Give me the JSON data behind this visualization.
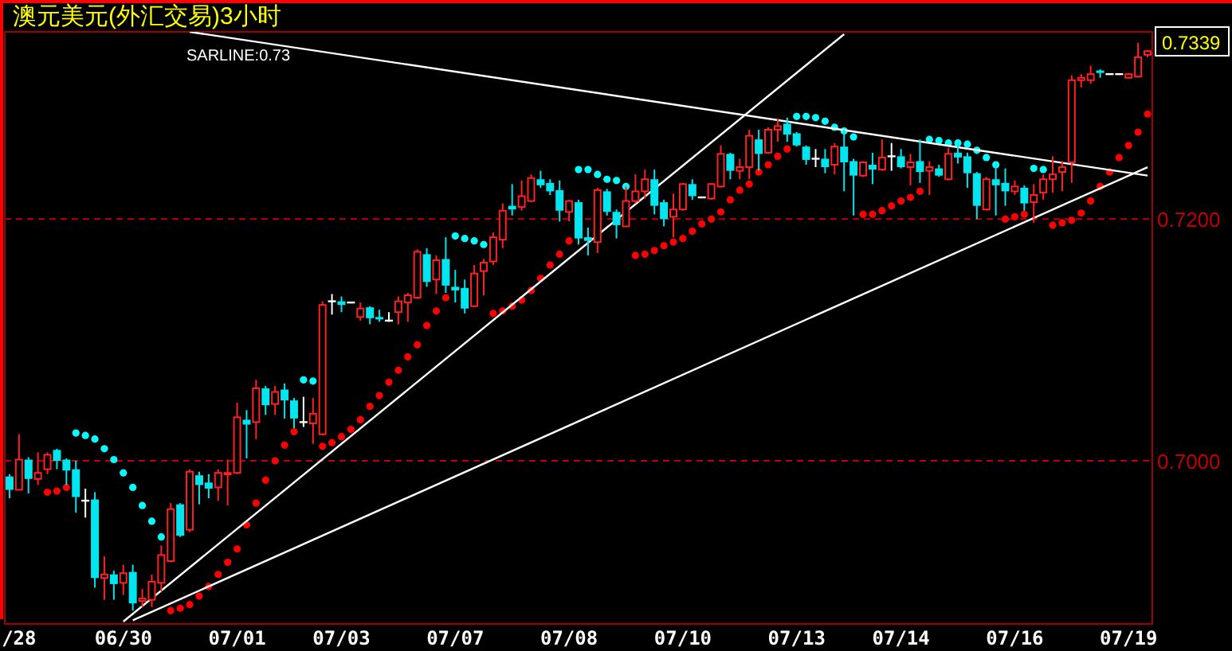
{
  "chart_data": {
    "type": "candlestick",
    "title": "澳元美元(外汇交易)3小时",
    "annotations": [
      "SARLINE:0.73",
      "0.7339"
    ],
    "categories": [
      null,
      "/28",
      null,
      null,
      null,
      null,
      null,
      null,
      null,
      null,
      null,
      null,
      "06/30",
      null,
      null,
      null,
      null,
      null,
      null,
      null,
      null,
      null,
      null,
      null,
      "07/01",
      null,
      null,
      null,
      null,
      null,
      null,
      null,
      null,
      null,
      null,
      "07/03",
      null,
      null,
      null,
      null,
      null,
      null,
      null,
      null,
      null,
      null,
      null,
      "07/07",
      null,
      null,
      null,
      null,
      null,
      null,
      null,
      null,
      null,
      null,
      null,
      "07/08",
      null,
      null,
      null,
      null,
      null,
      null,
      null,
      null,
      null,
      null,
      null,
      "07/10",
      null,
      null,
      null,
      null,
      null,
      null,
      null,
      null,
      null,
      null,
      null,
      "07/13",
      null,
      null,
      null,
      null,
      null,
      null,
      null,
      null,
      null,
      null,
      "07/14",
      null,
      null,
      null,
      null,
      null,
      null,
      null,
      null,
      null,
      null,
      null,
      "07/16",
      null,
      null,
      null,
      null,
      null,
      null,
      null,
      null,
      null,
      null,
      null,
      "07/19",
      null,
      null
    ],
    "ohlc": [
      [
        0.6987,
        0.6989,
        0.6969,
        0.6976
      ],
      [
        0.6976,
        0.7022,
        0.6976,
        0.7001
      ],
      [
        0.7001,
        0.7003,
        0.6973,
        0.6985
      ],
      [
        0.6985,
        0.7007,
        0.698,
        0.699
      ],
      [
        0.6993,
        0.7007,
        0.6989,
        0.7005
      ],
      [
        0.7009,
        0.701,
        0.6993,
        0.7
      ],
      [
        0.7001,
        0.7002,
        0.698,
        0.6992
      ],
      [
        0.6993,
        0.7,
        0.6957,
        0.697
      ],
      [
        0.6967,
        0.6977,
        0.6953,
        0.6967
      ],
      [
        0.6968,
        0.6974,
        0.6895,
        0.6903
      ],
      [
        0.6903,
        0.6921,
        0.6885,
        0.6906
      ],
      [
        0.6906,
        0.6909,
        0.6885,
        0.6898
      ],
      [
        0.6899,
        0.6914,
        0.6889,
        0.6907
      ],
      [
        0.6908,
        0.6914,
        0.6876,
        0.6882
      ],
      [
        0.6884,
        0.6894,
        0.6879,
        0.6886
      ],
      [
        0.6885,
        0.6906,
        0.6879,
        0.69
      ],
      [
        0.6899,
        0.693,
        0.6892,
        0.6922
      ],
      [
        0.6917,
        0.6965,
        0.6916,
        0.696
      ],
      [
        0.6964,
        0.6965,
        0.6937,
        0.6938
      ],
      [
        0.6943,
        0.6993,
        0.6941,
        0.6991
      ],
      [
        0.6988,
        0.6991,
        0.6964,
        0.698
      ],
      [
        0.6982,
        0.6989,
        0.6969,
        0.6977
      ],
      [
        0.6978,
        0.6993,
        0.6967,
        0.699
      ],
      [
        0.6989,
        0.7001,
        0.6963,
        0.699
      ],
      [
        0.699,
        0.7048,
        0.6989,
        0.7036
      ],
      [
        0.7034,
        0.7042,
        0.7002,
        0.703
      ],
      [
        0.7032,
        0.7067,
        0.7018,
        0.706
      ],
      [
        0.706,
        0.7062,
        0.7038,
        0.7046
      ],
      [
        0.7047,
        0.7062,
        0.7038,
        0.7057
      ],
      [
        0.7059,
        0.7064,
        0.7035,
        0.705
      ],
      [
        0.705,
        0.7052,
        0.7027,
        0.7035
      ],
      [
        0.7032,
        0.7053,
        0.7028,
        0.7032
      ],
      [
        0.7031,
        0.7052,
        0.7014,
        0.7039
      ],
      [
        0.7022,
        0.7132,
        0.7021,
        0.7129
      ],
      [
        0.7132,
        0.7138,
        0.7121,
        0.7132
      ],
      [
        0.7132,
        0.7136,
        0.7123,
        0.7129
      ],
      [
        0.7131,
        0.7131,
        0.7131,
        0.7131
      ],
      [
        0.7119,
        0.7131,
        0.7116,
        0.7126
      ],
      [
        0.7127,
        0.7128,
        0.7113,
        0.7118
      ],
      [
        0.7119,
        0.7125,
        0.7115,
        0.7117
      ],
      [
        0.7116,
        0.7123,
        0.7115,
        0.7116
      ],
      [
        0.7123,
        0.7136,
        0.7113,
        0.7132
      ],
      [
        0.7131,
        0.7139,
        0.7115,
        0.7137
      ],
      [
        0.7135,
        0.7175,
        0.7134,
        0.7173
      ],
      [
        0.7171,
        0.7176,
        0.7144,
        0.7148
      ],
      [
        0.715,
        0.717,
        0.7138,
        0.7166
      ],
      [
        0.7167,
        0.7185,
        0.7139,
        0.7145
      ],
      [
        0.7144,
        0.7158,
        0.7131,
        0.7141
      ],
      [
        0.7143,
        0.715,
        0.7122,
        0.7126
      ],
      [
        0.7128,
        0.7162,
        0.7127,
        0.7155
      ],
      [
        0.7157,
        0.7167,
        0.7137,
        0.7164
      ],
      [
        0.7165,
        0.7189,
        0.7162,
        0.7185
      ],
      [
        0.7183,
        0.7213,
        0.7176,
        0.7207
      ],
      [
        0.7211,
        0.7229,
        0.7203,
        0.7208
      ],
      [
        0.721,
        0.7232,
        0.7207,
        0.7219
      ],
      [
        0.7215,
        0.7237,
        0.7214,
        0.7234
      ],
      [
        0.7233,
        0.724,
        0.7226,
        0.7228
      ],
      [
        0.723,
        0.7233,
        0.722,
        0.7223
      ],
      [
        0.7224,
        0.7232,
        0.7198,
        0.7207
      ],
      [
        0.7206,
        0.7216,
        0.7198,
        0.7215
      ],
      [
        0.7214,
        0.7216,
        0.7179,
        0.7184
      ],
      [
        0.7185,
        0.7193,
        0.717,
        0.7182
      ],
      [
        0.7181,
        0.7226,
        0.7172,
        0.7224
      ],
      [
        0.7223,
        0.7225,
        0.7203,
        0.7206
      ],
      [
        0.7206,
        0.7208,
        0.7184,
        0.7195
      ],
      [
        0.7194,
        0.7227,
        0.7194,
        0.7215
      ],
      [
        0.7215,
        0.7237,
        0.7213,
        0.7223
      ],
      [
        0.7223,
        0.7241,
        0.7217,
        0.7233
      ],
      [
        0.7233,
        0.7241,
        0.7204,
        0.7211
      ],
      [
        0.7214,
        0.7216,
        0.7194,
        0.72
      ],
      [
        0.7202,
        0.7221,
        0.7185,
        0.7208
      ],
      [
        0.7208,
        0.723,
        0.7207,
        0.7229
      ],
      [
        0.7229,
        0.7233,
        0.7216,
        0.7219
      ],
      [
        0.7218,
        0.7218,
        0.7218,
        0.7218
      ],
      [
        0.7217,
        0.723,
        0.7216,
        0.7229
      ],
      [
        0.7227,
        0.7261,
        0.7226,
        0.7254
      ],
      [
        0.7254,
        0.7255,
        0.7233,
        0.724
      ],
      [
        0.724,
        0.725,
        0.7233,
        0.7243
      ],
      [
        0.7243,
        0.7274,
        0.7233,
        0.7269
      ],
      [
        0.7266,
        0.7274,
        0.724,
        0.7254
      ],
      [
        0.7255,
        0.7276,
        0.7254,
        0.7274
      ],
      [
        0.7274,
        0.7283,
        0.7264,
        0.7277
      ],
      [
        0.7279,
        0.7284,
        0.7264,
        0.727
      ],
      [
        0.7271,
        0.7272,
        0.726,
        0.7261
      ],
      [
        0.726,
        0.7261,
        0.7245,
        0.7249
      ],
      [
        0.725,
        0.7258,
        0.7243,
        0.725
      ],
      [
        0.725,
        0.7258,
        0.7238,
        0.7243
      ],
      [
        0.7245,
        0.7263,
        0.7237,
        0.726
      ],
      [
        0.726,
        0.7274,
        0.7223,
        0.7247
      ],
      [
        0.7248,
        0.725,
        0.7203,
        0.7236
      ],
      [
        0.7236,
        0.7248,
        0.7235,
        0.7247
      ],
      [
        0.7245,
        0.7255,
        0.7229,
        0.7241
      ],
      [
        0.7241,
        0.7266,
        0.724,
        0.7251
      ],
      [
        0.7252,
        0.7263,
        0.724,
        0.7252
      ],
      [
        0.7252,
        0.7258,
        0.7242,
        0.7243
      ],
      [
        0.7243,
        0.7254,
        0.7228,
        0.7247
      ],
      [
        0.7248,
        0.7266,
        0.723,
        0.7239
      ],
      [
        0.724,
        0.7248,
        0.722,
        0.7243
      ],
      [
        0.7242,
        0.7245,
        0.7235,
        0.7236
      ],
      [
        0.7233,
        0.7259,
        0.7232,
        0.7254
      ],
      [
        0.7255,
        0.7263,
        0.7246,
        0.7251
      ],
      [
        0.7252,
        0.7255,
        0.7226,
        0.7238
      ],
      [
        0.7238,
        0.7239,
        0.72,
        0.7211
      ],
      [
        0.7208,
        0.7235,
        0.7207,
        0.7233
      ],
      [
        0.7233,
        0.7246,
        0.7203,
        0.7228
      ],
      [
        0.723,
        0.7242,
        0.7211,
        0.7223
      ],
      [
        0.7223,
        0.7232,
        0.722,
        0.7227
      ],
      [
        0.7226,
        0.7228,
        0.7207,
        0.7213
      ],
      [
        0.7214,
        0.7229,
        0.7197,
        0.722
      ],
      [
        0.7222,
        0.7237,
        0.7216,
        0.7233
      ],
      [
        0.7233,
        0.7252,
        0.7222,
        0.7237
      ],
      [
        0.7239,
        0.7248,
        0.7223,
        0.7243
      ],
      [
        0.7247,
        0.7319,
        0.723,
        0.7315
      ],
      [
        0.7315,
        0.732,
        0.7309,
        0.7317
      ],
      [
        0.7315,
        0.7327,
        0.7312,
        0.732
      ],
      [
        0.7323,
        0.7324,
        0.7317,
        0.7321
      ],
      [
        0.732,
        0.732,
        0.732,
        0.732
      ],
      [
        0.732,
        0.732,
        0.732,
        0.732
      ],
      [
        0.7317,
        0.7321,
        0.7316,
        0.732
      ],
      [
        0.7318,
        0.7346,
        0.7317,
        0.7334
      ],
      [
        0.7336,
        0.734,
        0.7334,
        0.7339
      ]
    ],
    "series": [
      {
        "type": "scatter",
        "marker": "circle",
        "values": [
          null,
          null,
          null,
          null,
          0.6974,
          0.6975,
          0.6978,
          0.7023,
          0.7021,
          0.7018,
          0.701,
          0.7001,
          0.699,
          0.6978,
          0.6963,
          0.695,
          0.6937,
          0.6876,
          0.6878,
          0.6881,
          0.6888,
          0.6896,
          0.6906,
          0.6916,
          0.6927,
          0.6947,
          0.6965,
          0.6984,
          0.7,
          0.7013,
          0.7024,
          0.7067,
          0.7066,
          0.7012,
          0.7015,
          0.702,
          0.7026,
          0.7034,
          0.7045,
          0.7054,
          0.7065,
          0.7075,
          0.7086,
          0.7096,
          0.7112,
          0.7124,
          0.7135,
          0.7186,
          0.7184,
          0.7182,
          0.7179,
          0.7122,
          0.7124,
          0.7128,
          0.7133,
          0.7141,
          0.7151,
          0.7162,
          0.7171,
          0.7182,
          0.7241,
          0.7241,
          0.7237,
          0.7233,
          0.7232,
          0.7227,
          0.717,
          0.7171,
          0.7174,
          0.7178,
          0.7181,
          0.7184,
          0.719,
          0.7196,
          0.72,
          0.7206,
          0.7216,
          0.7224,
          0.7229,
          0.7239,
          0.7245,
          0.7252,
          0.7258,
          0.7285,
          0.7285,
          0.7284,
          0.7281,
          0.7276,
          0.7273,
          0.7268,
          0.7204,
          0.7204,
          0.7207,
          0.7211,
          0.7215,
          0.7218,
          0.7223,
          0.7266,
          0.7265,
          0.7263,
          0.7263,
          0.7262,
          0.7257,
          0.7251,
          0.7245,
          0.72,
          0.7202,
          0.7204,
          0.7242,
          0.7241,
          0.7195,
          0.7197,
          0.7199,
          0.7205,
          0.7215,
          0.7227,
          0.7239,
          0.7251,
          0.7261,
          0.7272,
          0.7287
        ],
        "colors": [
          null,
          null,
          null,
          null,
          "#ff0000",
          "#ff0000",
          "#ff0000",
          "#00ffff",
          "#00ffff",
          "#00ffff",
          "#00ffff",
          "#00ffff",
          "#00ffff",
          "#00ffff",
          "#00ffff",
          "#00ffff",
          "#00ffff",
          "#ff0000",
          "#ff0000",
          "#ff0000",
          "#ff0000",
          "#ff0000",
          "#ff0000",
          "#ff0000",
          "#ff0000",
          "#ff0000",
          "#ff0000",
          "#ff0000",
          "#ff0000",
          "#ff0000",
          "#ff0000",
          "#00ffff",
          "#00ffff",
          "#ff0000",
          "#ff0000",
          "#ff0000",
          "#ff0000",
          "#ff0000",
          "#ff0000",
          "#ff0000",
          "#ff0000",
          "#ff0000",
          "#ff0000",
          "#ff0000",
          "#ff0000",
          "#ff0000",
          "#ff0000",
          "#00ffff",
          "#00ffff",
          "#00ffff",
          "#00ffff",
          "#ff0000",
          "#ff0000",
          "#ff0000",
          "#ff0000",
          "#ff0000",
          "#ff0000",
          "#ff0000",
          "#ff0000",
          "#ff0000",
          "#00ffff",
          "#00ffff",
          "#00ffff",
          "#00ffff",
          "#00ffff",
          "#00ffff",
          "#ff0000",
          "#ff0000",
          "#ff0000",
          "#ff0000",
          "#ff0000",
          "#ff0000",
          "#ff0000",
          "#ff0000",
          "#ff0000",
          "#ff0000",
          "#ff0000",
          "#ff0000",
          "#ff0000",
          "#ff0000",
          "#ff0000",
          "#ff0000",
          "#ff0000",
          "#00ffff",
          "#00ffff",
          "#00ffff",
          "#00ffff",
          "#00ffff",
          "#00ffff",
          "#00ffff",
          "#ff0000",
          "#ff0000",
          "#ff0000",
          "#ff0000",
          "#ff0000",
          "#ff0000",
          "#ff0000",
          "#00ffff",
          "#00ffff",
          "#00ffff",
          "#00ffff",
          "#00ffff",
          "#00ffff",
          "#00ffff",
          "#00ffff",
          "#ff0000",
          "#ff0000",
          "#ff0000",
          "#00ffff",
          "#00ffff",
          "#ff0000",
          "#ff0000",
          "#ff0000",
          "#ff0000",
          "#ff0000",
          "#ff0000",
          "#ff0000",
          "#ff0000",
          "#ff0000",
          "#ff0000",
          "#ff0000"
        ]
      },
      {
        "type": "line",
        "color": "#ffffff",
        "values": [
          null,
          null,
          null,
          null,
          null,
          null,
          null,
          null,
          null,
          null,
          null,
          null,
          0.6867,
          null,
          null,
          null,
          null,
          null,
          null,
          null,
          null,
          null,
          null,
          null,
          null,
          null,
          null,
          null,
          null,
          null,
          null,
          null,
          null,
          null,
          null,
          null,
          null,
          null,
          null,
          null,
          null,
          null,
          null,
          null,
          null,
          null,
          null,
          null,
          null,
          null,
          null,
          null,
          null,
          null,
          null,
          null,
          null,
          null,
          null,
          null,
          null,
          null,
          null,
          null,
          null,
          null,
          null,
          null,
          null,
          null,
          null,
          null,
          null,
          null,
          null,
          null,
          null,
          null,
          null,
          null,
          null,
          null,
          null,
          null,
          null,
          null,
          null,
          null,
          0.7353,
          null,
          null,
          null,
          null,
          null,
          null,
          null,
          null,
          null,
          null,
          null,
          null,
          null,
          null,
          null,
          null,
          null,
          null,
          null,
          null,
          null,
          null,
          null,
          null,
          null,
          null,
          null,
          null,
          null,
          null,
          null,
          null
        ]
      },
      {
        "type": "line",
        "color": "#ffffff",
        "values": [
          null,
          null,
          null,
          null,
          null,
          null,
          null,
          null,
          null,
          null,
          null,
          null,
          null,
          0.6868,
          null,
          null,
          null,
          null,
          null,
          null,
          null,
          null,
          null,
          null,
          null,
          null,
          null,
          null,
          null,
          null,
          null,
          null,
          null,
          null,
          null,
          null,
          null,
          null,
          null,
          null,
          null,
          null,
          null,
          null,
          null,
          null,
          null,
          null,
          null,
          null,
          null,
          null,
          null,
          null,
          null,
          null,
          null,
          null,
          null,
          null,
          null,
          null,
          null,
          null,
          null,
          null,
          null,
          null,
          null,
          null,
          null,
          null,
          null,
          null,
          null,
          null,
          null,
          null,
          null,
          null,
          null,
          null,
          null,
          null,
          null,
          null,
          null,
          null,
          null,
          null,
          null,
          null,
          null,
          null,
          null,
          null,
          null,
          null,
          null,
          null,
          null,
          null,
          null,
          null,
          null,
          null,
          null,
          null,
          null,
          null,
          null,
          null,
          null,
          null,
          null,
          null,
          null,
          null,
          null,
          null,
          0.7243
        ]
      },
      {
        "type": "line",
        "color": "#ffffff",
        "values": [
          null,
          null,
          null,
          null,
          null,
          null,
          null,
          null,
          null,
          null,
          null,
          null,
          null,
          null,
          null,
          null,
          null,
          null,
          null,
          0.7355,
          null,
          null,
          null,
          null,
          null,
          null,
          null,
          null,
          null,
          null,
          null,
          null,
          null,
          null,
          null,
          null,
          null,
          null,
          null,
          null,
          null,
          null,
          null,
          null,
          null,
          null,
          null,
          null,
          null,
          null,
          null,
          null,
          null,
          null,
          null,
          null,
          null,
          null,
          null,
          null,
          null,
          null,
          null,
          null,
          null,
          null,
          null,
          null,
          null,
          null,
          null,
          null,
          null,
          null,
          null,
          null,
          null,
          null,
          null,
          null,
          null,
          null,
          null,
          null,
          null,
          null,
          null,
          null,
          null,
          null,
          null,
          null,
          null,
          null,
          null,
          null,
          null,
          null,
          null,
          null,
          null,
          null,
          null,
          null,
          null,
          null,
          null,
          null,
          null,
          null,
          null,
          null,
          null,
          null,
          null,
          null,
          null,
          null,
          null,
          null,
          0.7236
        ]
      }
    ],
    "ylim": [
      0.6865,
      0.7355
    ],
    "yticks": [
      {
        "value": 0.7,
        "label": "0.7000"
      },
      {
        "value": 0.72,
        "label": "0.7200"
      }
    ],
    "grid": "y"
  }
}
